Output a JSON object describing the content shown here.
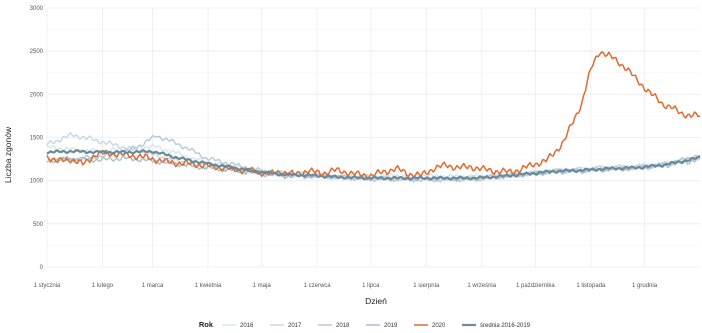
{
  "chart_data": {
    "type": "line",
    "xlabel": "Dzień",
    "ylabel": "Liczba zgonów",
    "ylim": [
      0,
      3000
    ],
    "yticks": [
      0,
      500,
      1000,
      1500,
      2000,
      2500,
      3000
    ],
    "x_tick_labels": [
      "1 stycznia",
      "1 lutego",
      "1 marca",
      "1 kwietnia",
      "1 maja",
      "1 czerwca",
      "1 lipca",
      "1 sierpnia",
      "1 września",
      "1 października",
      "1 listopada",
      "1 grudnia"
    ],
    "x_tick_days": [
      1,
      32,
      60,
      91,
      121,
      152,
      182,
      213,
      244,
      274,
      305,
      335
    ],
    "xlim": [
      1,
      366
    ],
    "grid": true,
    "legend_position": "bottom",
    "legend_title": "Rok",
    "series": [
      {
        "name": "2016",
        "color": "#d6e6ef",
        "x": [
          1,
          15,
          30,
          45,
          60,
          75,
          90,
          105,
          120,
          135,
          150,
          165,
          180,
          195,
          210,
          225,
          240,
          255,
          270,
          285,
          300,
          315,
          330,
          345,
          360,
          366
        ],
        "y": [
          1390,
          1360,
          1340,
          1370,
          1400,
          1310,
          1200,
          1160,
          1100,
          1070,
          1060,
          1050,
          1040,
          1060,
          1060,
          1050,
          1050,
          1060,
          1080,
          1120,
          1130,
          1150,
          1160,
          1190,
          1250,
          1270
        ]
      },
      {
        "name": "2017",
        "color": "#c3d8e5",
        "x": [
          1,
          15,
          30,
          45,
          60,
          75,
          90,
          105,
          120,
          135,
          150,
          165,
          180,
          195,
          210,
          225,
          240,
          255,
          270,
          285,
          300,
          315,
          330,
          345,
          360,
          366
        ],
        "y": [
          1420,
          1530,
          1460,
          1380,
          1300,
          1220,
          1180,
          1140,
          1100,
          1080,
          1060,
          1040,
          1040,
          1030,
          1030,
          1020,
          1030,
          1050,
          1080,
          1110,
          1130,
          1150,
          1160,
          1190,
          1240,
          1260
        ]
      },
      {
        "name": "2018",
        "color": "#b4cad8",
        "x": [
          1,
          15,
          30,
          45,
          55,
          62,
          70,
          80,
          90,
          105,
          120,
          135,
          150,
          165,
          180,
          195,
          210,
          225,
          240,
          255,
          270,
          285,
          300,
          315,
          330,
          345,
          360,
          366
        ],
        "y": [
          1260,
          1250,
          1280,
          1330,
          1430,
          1520,
          1460,
          1370,
          1260,
          1190,
          1120,
          1080,
          1060,
          1040,
          1020,
          1020,
          1010,
          1010,
          1020,
          1050,
          1080,
          1110,
          1120,
          1140,
          1150,
          1180,
          1260,
          1300
        ]
      },
      {
        "name": "2019",
        "color": "#a8bfce",
        "x": [
          1,
          15,
          30,
          45,
          60,
          75,
          90,
          105,
          120,
          135,
          150,
          165,
          180,
          195,
          210,
          225,
          240,
          255,
          270,
          285,
          300,
          315,
          330,
          345,
          360,
          366
        ],
        "y": [
          1230,
          1250,
          1240,
          1260,
          1230,
          1190,
          1150,
          1120,
          1080,
          1050,
          1050,
          1040,
          1030,
          1020,
          1020,
          1020,
          1020,
          1050,
          1070,
          1100,
          1110,
          1130,
          1140,
          1170,
          1220,
          1250
        ]
      },
      {
        "name": "2020",
        "color": "#e06b2e",
        "x": [
          1,
          7,
          14,
          21,
          28,
          35,
          42,
          49,
          56,
          63,
          70,
          77,
          84,
          91,
          98,
          105,
          112,
          119,
          126,
          133,
          140,
          147,
          154,
          161,
          168,
          175,
          182,
          189,
          196,
          203,
          210,
          217,
          224,
          231,
          238,
          245,
          252,
          259,
          266,
          273,
          280,
          285,
          290,
          295,
          300,
          303,
          306,
          310,
          315,
          320,
          325,
          330,
          335,
          340,
          345,
          350,
          355,
          360,
          366
        ],
        "y": [
          1280,
          1220,
          1250,
          1190,
          1300,
          1320,
          1300,
          1290,
          1270,
          1240,
          1210,
          1200,
          1190,
          1170,
          1150,
          1130,
          1120,
          1100,
          1080,
          1100,
          1070,
          1120,
          1080,
          1120,
          1100,
          1070,
          1060,
          1100,
          1140,
          1080,
          1060,
          1140,
          1180,
          1150,
          1160,
          1130,
          1110,
          1100,
          1130,
          1190,
          1230,
          1330,
          1460,
          1680,
          1900,
          2150,
          2340,
          2500,
          2450,
          2380,
          2300,
          2180,
          2080,
          1980,
          1890,
          1850,
          1780,
          1760,
          1750
        ]
      },
      {
        "name": "średnia 2016-2019",
        "color": "#6d8899",
        "x": [
          1,
          15,
          30,
          45,
          60,
          75,
          90,
          105,
          120,
          135,
          150,
          165,
          180,
          195,
          210,
          225,
          240,
          255,
          270,
          285,
          300,
          315,
          330,
          345,
          360,
          366
        ],
        "y": [
          1330,
          1340,
          1330,
          1330,
          1340,
          1260,
          1200,
          1150,
          1100,
          1070,
          1060,
          1040,
          1030,
          1030,
          1030,
          1030,
          1030,
          1050,
          1080,
          1110,
          1120,
          1140,
          1150,
          1180,
          1240,
          1270
        ]
      }
    ]
  }
}
